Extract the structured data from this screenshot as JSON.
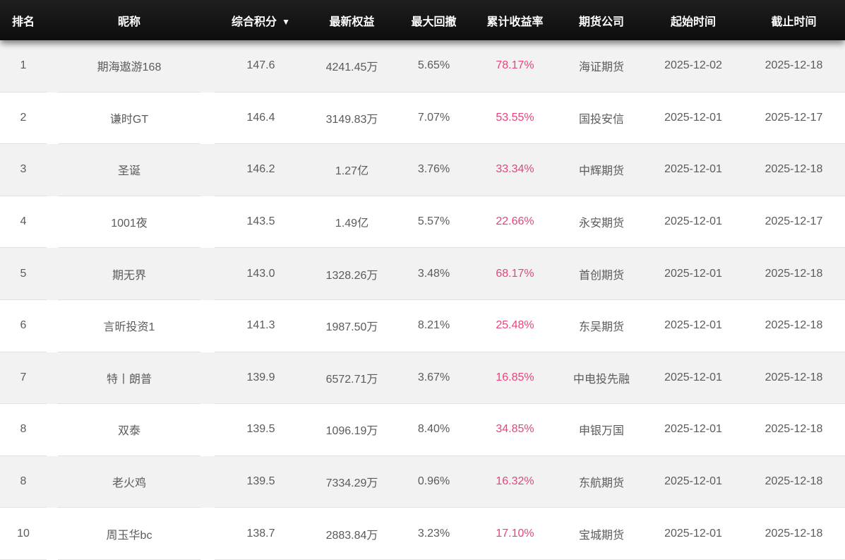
{
  "header": {
    "columns": [
      {
        "id": "rank",
        "label": "排名"
      },
      {
        "id": "nickname",
        "label": "昵称"
      },
      {
        "id": "score",
        "label": "综合积分",
        "sorted": "desc"
      },
      {
        "id": "equity",
        "label": "最新权益"
      },
      {
        "id": "max_drawdown",
        "label": "最大回撤"
      },
      {
        "id": "cum_return",
        "label": "累计收益率"
      },
      {
        "id": "company",
        "label": "期货公司"
      },
      {
        "id": "start_date",
        "label": "起始时间"
      },
      {
        "id": "end_date",
        "label": "截止时间"
      }
    ],
    "sort_icon": "▼"
  },
  "colors": {
    "header_bg": "#141414",
    "header_text": "#ffffff",
    "row_alt_bg": "#f2f2f2",
    "row_bg": "#ffffff",
    "value_text": "#5b5b5b",
    "return_pink": "#e8437e",
    "divider": "#e1e1e1"
  },
  "rows": [
    {
      "rank": "1",
      "nickname": "期海遨游168",
      "score": "147.6",
      "equity": "4241.45万",
      "max_drawdown": "5.65%",
      "cum_return": "78.17%",
      "company": "海证期货",
      "start_date": "2025-12-02",
      "end_date": "2025-12-18"
    },
    {
      "rank": "2",
      "nickname": "谦时GT",
      "score": "146.4",
      "equity": "3149.83万",
      "max_drawdown": "7.07%",
      "cum_return": "53.55%",
      "company": "国投安信",
      "start_date": "2025-12-01",
      "end_date": "2025-12-17"
    },
    {
      "rank": "3",
      "nickname": "圣诞",
      "score": "146.2",
      "equity": "1.27亿",
      "max_drawdown": "3.76%",
      "cum_return": "33.34%",
      "company": "中辉期货",
      "start_date": "2025-12-01",
      "end_date": "2025-12-18"
    },
    {
      "rank": "4",
      "nickname": "1001夜",
      "score": "143.5",
      "equity": "1.49亿",
      "max_drawdown": "5.57%",
      "cum_return": "22.66%",
      "company": "永安期货",
      "start_date": "2025-12-01",
      "end_date": "2025-12-17"
    },
    {
      "rank": "5",
      "nickname": "期无界",
      "score": "143.0",
      "equity": "1328.26万",
      "max_drawdown": "3.48%",
      "cum_return": "68.17%",
      "company": "首创期货",
      "start_date": "2025-12-01",
      "end_date": "2025-12-18"
    },
    {
      "rank": "6",
      "nickname": "言昕投资1",
      "score": "141.3",
      "equity": "1987.50万",
      "max_drawdown": "8.21%",
      "cum_return": "25.48%",
      "company": "东吴期货",
      "start_date": "2025-12-01",
      "end_date": "2025-12-18"
    },
    {
      "rank": "7",
      "nickname": "特丨朗普",
      "score": "139.9",
      "equity": "6572.71万",
      "max_drawdown": "3.67%",
      "cum_return": "16.85%",
      "company": "中电投先融",
      "start_date": "2025-12-01",
      "end_date": "2025-12-18"
    },
    {
      "rank": "8",
      "nickname": "双泰",
      "score": "139.5",
      "equity": "1096.19万",
      "max_drawdown": "8.40%",
      "cum_return": "34.85%",
      "company": "申银万国",
      "start_date": "2025-12-01",
      "end_date": "2025-12-18"
    },
    {
      "rank": "8",
      "nickname": "老火鸡",
      "score": "139.5",
      "equity": "7334.29万",
      "max_drawdown": "0.96%",
      "cum_return": "16.32%",
      "company": "东航期货",
      "start_date": "2025-12-01",
      "end_date": "2025-12-18"
    },
    {
      "rank": "10",
      "nickname": "周玉华bc",
      "score": "138.7",
      "equity": "2883.84万",
      "max_drawdown": "3.23%",
      "cum_return": "17.10%",
      "company": "宝城期货",
      "start_date": "2025-12-01",
      "end_date": "2025-12-18"
    }
  ]
}
